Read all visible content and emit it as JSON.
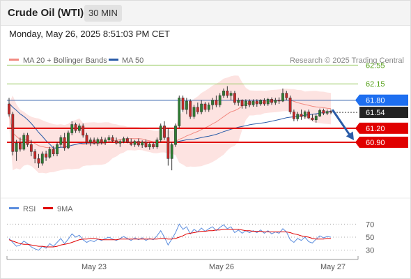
{
  "header": {
    "title": "Crude Oil (WTI)",
    "timeframe": "30 MIN",
    "timestamp": "Monday, May 26, 2025 8:51:03 PM CET"
  },
  "legend": {
    "ma20": "MA 20 + Bollinger Bands",
    "ma50": "MA 50",
    "credit": "Research © 2025 Trading Central"
  },
  "oscillator_legend": {
    "rsi": "RSI",
    "ma9": "9MA"
  },
  "colors": {
    "ma20": "#f28b82",
    "ma50": "#2a5ca8",
    "bollinger_fill": "#fde3e1",
    "bull_candle": "#2e7d32",
    "bear_candle": "#c62828",
    "resistance_line": "#7cb342",
    "support_line": "#e00000",
    "blue_label": "#1e6ff0",
    "current_label": "#222222",
    "red_label": "#e00000",
    "arrow": "#2a5ca8"
  },
  "chart_data": [
    {
      "type": "candlestick",
      "title": "Crude Oil (WTI)",
      "timeframe": "30 MIN",
      "ylim": [
        59.75,
        62.75
      ],
      "x_tick_labels": [
        "May 23",
        "May 26",
        "May 27"
      ],
      "levels": [
        {
          "value": 62.55,
          "label": "62.55",
          "style": "resistance"
        },
        {
          "value": 62.15,
          "label": "62.15",
          "style": "resistance"
        },
        {
          "value": 61.8,
          "label": "61.80",
          "style": "pivot"
        },
        {
          "value": 61.2,
          "label": "61.20",
          "style": "support"
        },
        {
          "value": 60.9,
          "label": "60.90",
          "style": "support"
        }
      ],
      "current_price": {
        "value": 61.54,
        "label": "61.54"
      },
      "forecast_arrow": {
        "from": 61.58,
        "to": 60.9
      },
      "candles": [
        [
          61.72,
          61.85,
          61.45,
          61.5
        ],
        [
          61.5,
          61.55,
          60.62,
          60.7
        ],
        [
          60.7,
          60.95,
          60.5,
          60.88
        ],
        [
          60.88,
          61.0,
          60.7,
          60.75
        ],
        [
          60.75,
          61.1,
          60.72,
          61.05
        ],
        [
          61.05,
          61.1,
          60.8,
          60.85
        ],
        [
          60.85,
          60.95,
          60.6,
          60.7
        ],
        [
          60.7,
          60.75,
          60.45,
          60.55
        ],
        [
          60.55,
          60.65,
          60.35,
          60.45
        ],
        [
          60.45,
          60.7,
          60.4,
          60.65
        ],
        [
          60.65,
          60.72,
          60.5,
          60.58
        ],
        [
          60.58,
          60.8,
          60.55,
          60.75
        ],
        [
          60.75,
          60.82,
          60.6,
          60.65
        ],
        [
          60.65,
          60.9,
          60.6,
          60.85
        ],
        [
          60.85,
          61.05,
          60.8,
          61.0
        ],
        [
          61.0,
          61.1,
          60.72,
          60.78
        ],
        [
          60.78,
          61.15,
          60.75,
          61.1
        ],
        [
          61.1,
          61.35,
          61.05,
          61.28
        ],
        [
          61.28,
          61.32,
          61.1,
          61.15
        ],
        [
          61.15,
          61.3,
          61.1,
          61.25
        ],
        [
          61.25,
          61.3,
          61.0,
          61.05
        ],
        [
          61.05,
          61.1,
          60.85,
          60.9
        ],
        [
          60.9,
          61.0,
          60.82,
          60.95
        ],
        [
          60.95,
          61.0,
          60.85,
          60.88
        ],
        [
          60.88,
          61.0,
          60.82,
          60.96
        ],
        [
          60.96,
          61.02,
          60.85,
          60.9
        ],
        [
          60.9,
          61.0,
          60.84,
          60.95
        ],
        [
          60.95,
          61.05,
          60.9,
          61.0
        ],
        [
          61.0,
          61.05,
          60.9,
          60.93
        ],
        [
          60.93,
          61.0,
          60.85,
          60.88
        ],
        [
          60.88,
          60.96,
          60.8,
          60.92
        ],
        [
          60.92,
          61.02,
          60.88,
          60.98
        ],
        [
          60.98,
          61.02,
          60.88,
          60.9
        ],
        [
          60.9,
          60.98,
          60.82,
          60.85
        ],
        [
          60.85,
          60.95,
          60.8,
          60.92
        ],
        [
          60.92,
          60.98,
          60.8,
          60.84
        ],
        [
          60.84,
          60.94,
          60.78,
          60.9
        ],
        [
          60.9,
          60.96,
          60.78,
          60.8
        ],
        [
          60.8,
          60.9,
          60.74,
          60.86
        ],
        [
          60.86,
          60.9,
          60.76,
          60.8
        ],
        [
          60.8,
          61.0,
          60.76,
          60.95
        ],
        [
          60.95,
          61.3,
          60.9,
          61.25
        ],
        [
          61.25,
          61.35,
          60.95,
          61.0
        ],
        [
          61.0,
          61.2,
          60.4,
          60.55
        ],
        [
          60.55,
          60.9,
          60.3,
          60.85
        ],
        [
          60.85,
          61.3,
          60.8,
          61.25
        ],
        [
          61.25,
          61.9,
          61.2,
          61.85
        ],
        [
          61.85,
          61.9,
          61.55,
          61.6
        ],
        [
          61.6,
          61.85,
          61.5,
          61.78
        ],
        [
          61.78,
          61.82,
          61.4,
          61.45
        ],
        [
          61.45,
          61.7,
          61.4,
          61.65
        ],
        [
          61.65,
          61.75,
          61.5,
          61.55
        ],
        [
          61.55,
          61.8,
          61.5,
          61.72
        ],
        [
          61.72,
          61.76,
          61.55,
          61.6
        ],
        [
          61.6,
          61.75,
          61.55,
          61.7
        ],
        [
          61.7,
          61.85,
          61.6,
          61.8
        ],
        [
          61.8,
          61.9,
          61.65,
          61.7
        ],
        [
          61.7,
          61.95,
          61.65,
          61.9
        ],
        [
          61.9,
          62.05,
          61.85,
          62.0
        ],
        [
          62.0,
          62.1,
          61.85,
          61.9
        ],
        [
          61.9,
          62.0,
          61.8,
          61.95
        ],
        [
          61.95,
          62.0,
          61.7,
          61.75
        ],
        [
          61.75,
          61.85,
          61.68,
          61.8
        ],
        [
          61.8,
          61.82,
          61.62,
          61.68
        ],
        [
          61.68,
          61.82,
          61.62,
          61.78
        ],
        [
          61.78,
          61.82,
          61.65,
          61.7
        ],
        [
          61.7,
          61.82,
          61.66,
          61.78
        ],
        [
          61.78,
          61.82,
          61.66,
          61.72
        ],
        [
          61.72,
          61.82,
          61.68,
          61.8
        ],
        [
          61.8,
          61.84,
          61.68,
          61.72
        ],
        [
          61.72,
          61.85,
          61.68,
          61.82
        ],
        [
          61.82,
          61.86,
          61.7,
          61.75
        ],
        [
          61.75,
          61.85,
          61.7,
          61.8
        ],
        [
          61.8,
          61.86,
          61.72,
          61.78
        ],
        [
          61.78,
          62.05,
          61.76,
          61.95
        ],
        [
          61.95,
          62.0,
          61.8,
          61.85
        ],
        [
          61.85,
          61.9,
          61.5,
          61.55
        ],
        [
          61.55,
          61.6,
          61.35,
          61.4
        ],
        [
          61.4,
          61.55,
          61.35,
          61.5
        ],
        [
          61.5,
          61.6,
          61.38,
          61.45
        ],
        [
          61.45,
          61.58,
          61.4,
          61.55
        ],
        [
          61.55,
          61.6,
          61.4,
          61.42
        ],
        [
          61.42,
          61.5,
          61.36,
          61.38
        ],
        [
          61.38,
          61.5,
          61.32,
          61.46
        ],
        [
          61.46,
          61.62,
          61.44,
          61.58
        ],
        [
          61.58,
          61.62,
          61.48,
          61.52
        ],
        [
          61.52,
          61.6,
          61.48,
          61.56
        ],
        [
          61.56,
          61.6,
          61.5,
          61.54
        ]
      ]
    },
    {
      "type": "line",
      "title": "RSI",
      "ylim": [
        20,
        80
      ],
      "y_ticks": [
        70,
        50,
        30
      ],
      "gridlines": [
        70,
        50,
        30
      ],
      "series": [
        {
          "name": "RSI",
          "values": [
            48,
            42,
            36,
            38,
            44,
            40,
            35,
            32,
            30,
            36,
            33,
            40,
            36,
            42,
            48,
            40,
            47,
            55,
            50,
            53,
            46,
            42,
            45,
            43,
            47,
            45,
            48,
            50,
            47,
            45,
            48,
            51,
            48,
            45,
            49,
            46,
            49,
            45,
            48,
            46,
            52,
            60,
            50,
            38,
            47,
            57,
            70,
            62,
            66,
            55,
            62,
            58,
            64,
            59,
            63,
            66,
            60,
            65,
            69,
            63,
            66,
            57,
            61,
            56,
            60,
            57,
            60,
            57,
            61,
            56,
            60,
            55,
            58,
            56,
            63,
            58,
            46,
            42,
            48,
            45,
            50,
            43,
            41,
            47,
            52,
            49,
            51,
            50
          ]
        },
        {
          "name": "9MA",
          "values": [
            46,
            44,
            42,
            40,
            39,
            39,
            38,
            37,
            36,
            36,
            35,
            35,
            35,
            36,
            38,
            39,
            40,
            42,
            44,
            46,
            47,
            47,
            48,
            48,
            47,
            46,
            46,
            46,
            46,
            46,
            47,
            47,
            47,
            47,
            47,
            47,
            47,
            47,
            47,
            47,
            47,
            48,
            48,
            47,
            47,
            48,
            50,
            52,
            55,
            56,
            57,
            58,
            59,
            59,
            60,
            60,
            61,
            61,
            62,
            62,
            62,
            62,
            62,
            61,
            60,
            60,
            59,
            59,
            59,
            58,
            58,
            58,
            58,
            58,
            58,
            58,
            57,
            55,
            54,
            52,
            51,
            50,
            48,
            47,
            47,
            47,
            48,
            48
          ]
        }
      ]
    }
  ]
}
